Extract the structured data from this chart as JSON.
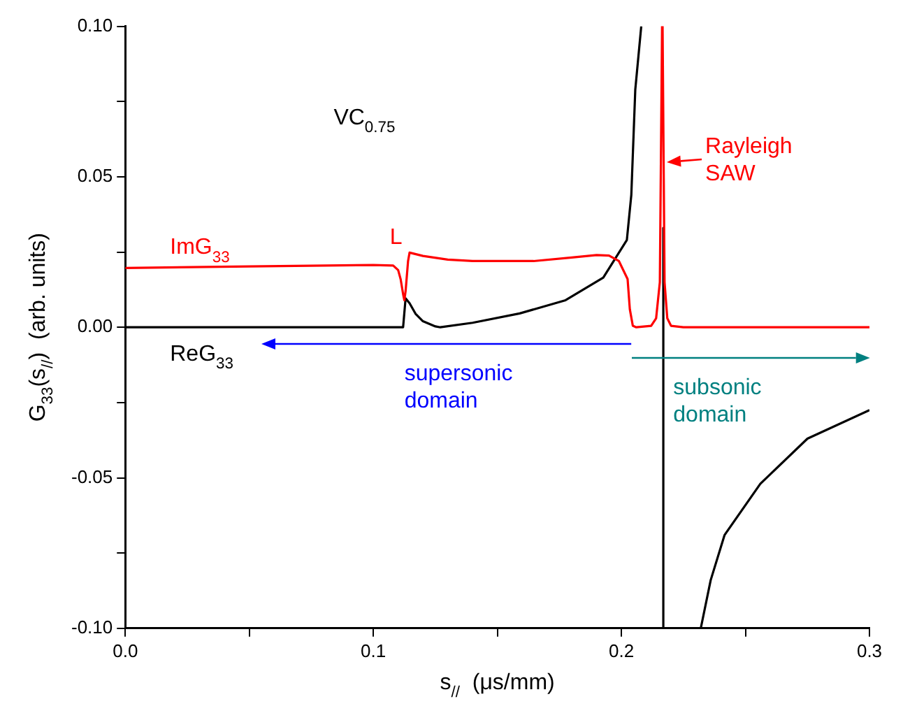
{
  "chart_data": {
    "type": "line",
    "xlabel": "s$_{//}$  (μs/mm)",
    "ylabel": "G$_{33}$(s$_{//}$)  (arb. units)",
    "xlim": [
      0,
      0.3
    ],
    "xticks": [
      {
        "value": 0,
        "label": "0.0"
      },
      {
        "value": 0.05,
        "label": null
      },
      {
        "value": 0.1,
        "label": "0.1"
      },
      {
        "value": 0.15,
        "label": null
      },
      {
        "value": 0.2,
        "label": "0.2"
      },
      {
        "value": 0.25,
        "label": null
      },
      {
        "value": 0.3,
        "label": "0.3"
      }
    ],
    "ylim": [
      -0.1,
      0.1
    ],
    "yticks": [
      {
        "value": -0.1,
        "label": "-0.10"
      },
      {
        "value": -0.075,
        "label": null
      },
      {
        "value": -0.05,
        "label": "-0.05"
      },
      {
        "value": -0.025,
        "label": null
      },
      {
        "value": 0,
        "label": "0.00"
      },
      {
        "value": 0.025,
        "label": null
      },
      {
        "value": 0.05,
        "label": "0.05"
      },
      {
        "value": 0.075,
        "label": null
      },
      {
        "value": 0.1,
        "label": "0.10"
      }
    ],
    "grid": false,
    "legend": false,
    "marker": "none",
    "line_style": "solid",
    "series": [
      {
        "name": "ImG$_{33}$",
        "color": "#ff0000",
        "x": [
          0,
          0.05,
          0.1,
          0.108,
          0.11,
          0.111,
          0.112,
          0.1125,
          0.113,
          0.114,
          0.1146,
          0.12,
          0.13,
          0.14,
          0.1646,
          0.18,
          0.19,
          0.195,
          0.199,
          0.2025,
          0.2034,
          0.2046,
          0.206,
          0.212,
          0.214,
          0.2155,
          0.2164,
          0.2166,
          0.2174,
          0.2185,
          0.22,
          0.225,
          0.3
        ],
        "values": [
          0.0197,
          0.0202,
          0.0207,
          0.0205,
          0.019,
          0.016,
          0.011,
          0.009,
          0.012,
          0.022,
          0.0248,
          0.0237,
          0.0225,
          0.022,
          0.022,
          0.0232,
          0.024,
          0.0238,
          0.022,
          0.016,
          0.006,
          0.0005,
          0,
          0.0005,
          0.003,
          0.015,
          0.1,
          0.1,
          0.015,
          0.003,
          0.0005,
          0,
          0
        ]
      },
      {
        "name": "ReG$_{33}$",
        "color": "#000000",
        "x": [
          0,
          0.112,
          0.113,
          0.1146,
          0.117,
          0.12,
          0.125,
          0.127,
          0.14,
          0.159,
          0.1775,
          0.1927,
          0.2022,
          0.204,
          0.2056,
          0.208,
          0.21,
          0.2169,
          0.2169,
          0.224,
          0.232,
          0.236,
          0.2416,
          0.256,
          0.275,
          0.3
        ],
        "values": [
          0,
          0,
          0.0096,
          0.008,
          0.0045,
          0.002,
          0.0003,
          0,
          0.0015,
          0.0046,
          0.009,
          0.0165,
          0.029,
          0.044,
          0.079,
          0.1,
          null,
          0.033,
          -0.1,
          null,
          -0.1,
          -0.084,
          -0.069,
          -0.052,
          -0.037,
          -0.0275
        ]
      }
    ],
    "annotations": [
      "VC$_{0.75}$",
      {
        "text": "L",
        "x": 0.1125,
        "y": 0.025
      },
      {
        "text": "Rayleigh\nSAW",
        "x": 0.2169,
        "y": 0.055
      },
      "supersonic\ndomain",
      "subsonic\ndomain"
    ]
  }
}
